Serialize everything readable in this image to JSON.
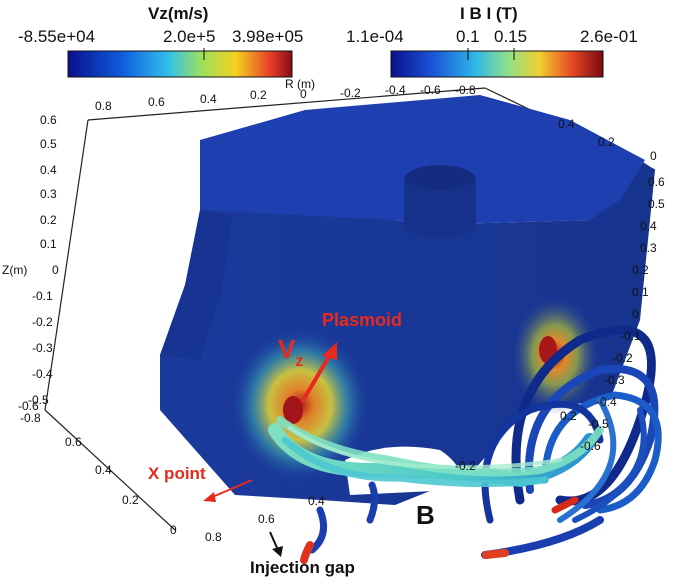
{
  "colorbars": {
    "vz": {
      "title": "Vz(m/s)",
      "ticks": [
        "-8.55e+04",
        "2.0e+5",
        "3.98e+05"
      ]
    },
    "b": {
      "title": "I B I (T)",
      "ticks": [
        "1.1e-04",
        "0.1",
        "0.15",
        "2.6e-01"
      ]
    }
  },
  "axes": {
    "r_label": "R (m)",
    "z_label": "Z(m)",
    "top_r_ticks": [
      "0.8",
      "0.6",
      "0.4",
      "0.2",
      "0",
      "-0.2",
      "-0.4",
      "-0.6",
      "-0.8"
    ],
    "top_right_ticks": [
      "0.4",
      "0.2",
      "0"
    ],
    "left_z_ticks": [
      "0.6",
      "0.5",
      "0.4",
      "0.3",
      "0.2",
      "0.1",
      "0",
      "-0.1",
      "-0.2",
      "-0.3",
      "-0.4",
      "-0.5",
      "-0.6"
    ],
    "right_z_ticks": [
      "0.6",
      "0.5",
      "0.4",
      "0.3",
      "0.2",
      "0.1",
      "0",
      "-0.1",
      "-0.2",
      "-0.3",
      "-0.4",
      "-0.5",
      "-0.6"
    ],
    "bottom_left_ticks": [
      "-0.8",
      "0.6",
      "0.4",
      "0.2",
      "0"
    ],
    "bottom_front_ticks": [
      "0.8",
      "0.6",
      "0.4"
    ],
    "bottom_right_ticks": [
      "-0.2",
      "0.2"
    ]
  },
  "annotations": {
    "plasmoid": "Plasmoid",
    "vz_symbol": "V",
    "vz_subscript": "z",
    "x_point": "X point",
    "b_label": "B",
    "injection_gap": "Injection gap"
  },
  "colors": {
    "annotation_red": "#e8291c",
    "solid_blue": "#1a3a9c",
    "top_face_blue": "#1d3fb0"
  }
}
